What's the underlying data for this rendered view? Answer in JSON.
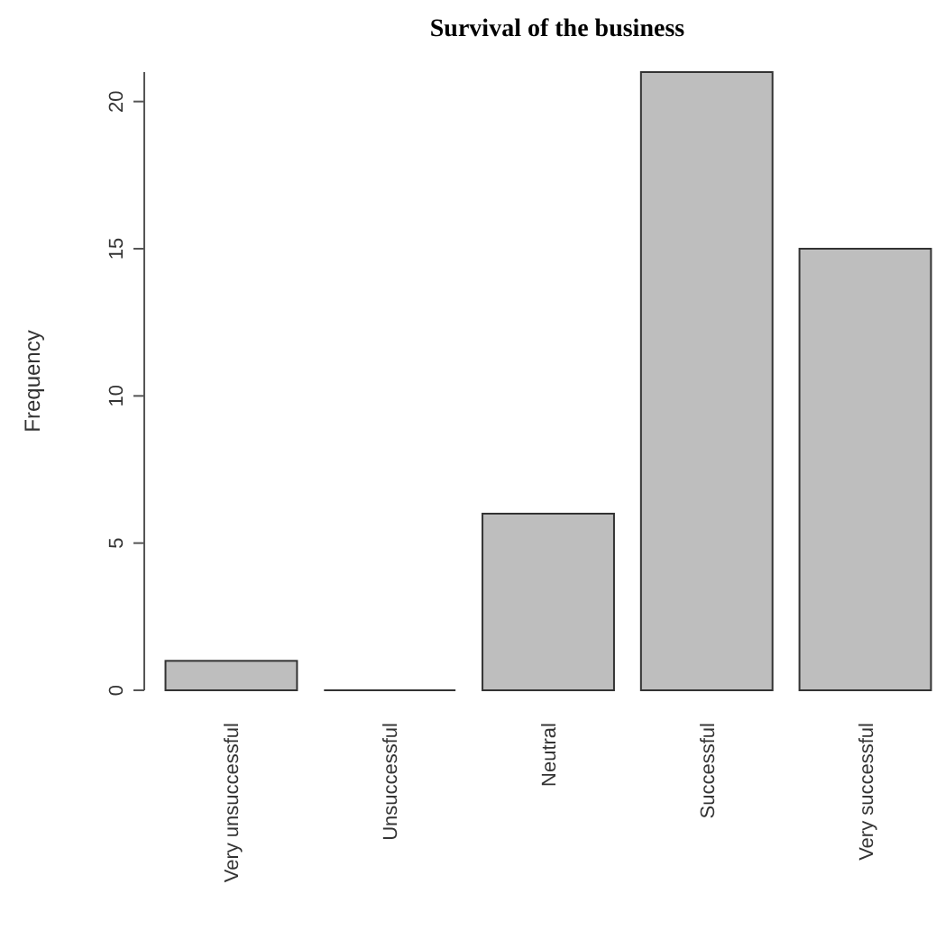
{
  "chart_data": {
    "type": "bar",
    "title": "Survival of the business",
    "ylabel": "Frequency",
    "categories": [
      "Very unsuccessful",
      "Unsuccessful",
      "Neutral",
      "Successful",
      "Very successful"
    ],
    "values": [
      1,
      0,
      6,
      21,
      15
    ],
    "color": "#bebebe",
    "ylim": [
      0,
      21
    ],
    "yticks": [
      0,
      5,
      10,
      15,
      20
    ],
    "grid": false
  }
}
